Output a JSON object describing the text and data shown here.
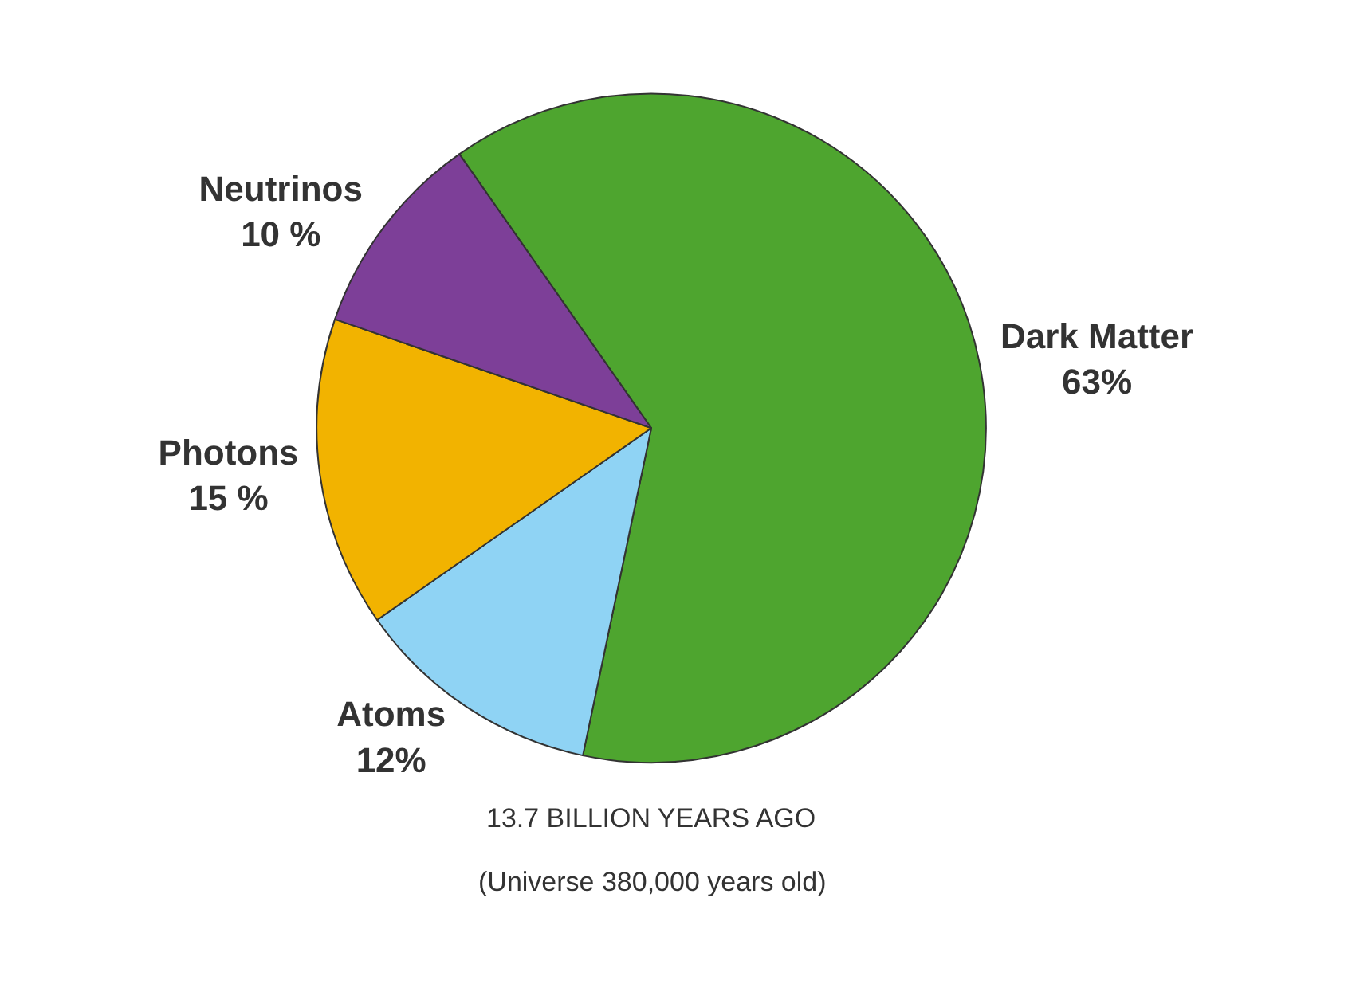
{
  "chart_data": {
    "type": "pie",
    "categories": [
      "Dark Matter",
      "Atoms",
      "Photons",
      "Neutrinos"
    ],
    "values": [
      63,
      12,
      15,
      10
    ],
    "value_labels": [
      "63%",
      "12%",
      "15 %",
      "10 %"
    ],
    "colors": [
      "#4ea52f",
      "#8fd3f4",
      "#f2b300",
      "#7d3f98"
    ],
    "annotations": [
      "13.7 BILLION YEARS AGO",
      "(Universe 380,000 years old)"
    ],
    "legend": false
  }
}
